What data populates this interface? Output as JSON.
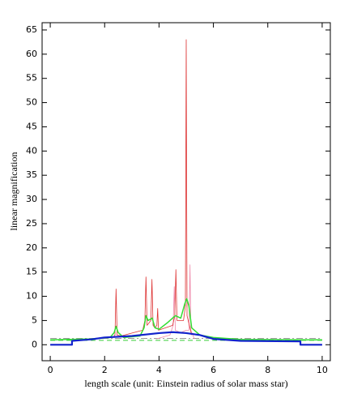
{
  "chart_data": {
    "type": "line",
    "xlabel": "length scale (unit: Einstein radius of solar mass star)",
    "ylabel": "linear magnification",
    "xlim": [
      -0.3,
      10.3
    ],
    "ylim": [
      -3.3,
      66.5
    ],
    "xticks": [
      0,
      2,
      4,
      6,
      8,
      10
    ],
    "yticks": [
      0,
      5,
      10,
      15,
      20,
      25,
      30,
      35,
      40,
      45,
      50,
      55,
      60,
      65
    ],
    "series": [
      {
        "color": "#999999",
        "linestyle": "dashdot",
        "linewidth": 1,
        "x": [
          0,
          10
        ],
        "values": [
          1.3,
          1.3
        ]
      },
      {
        "color": "#33cc33",
        "linestyle": "dashed",
        "linewidth": 1,
        "x": [
          0,
          10
        ],
        "values": [
          0.9,
          0.9
        ]
      },
      {
        "color": "#ee88aa",
        "linestyle": "solid",
        "linewidth": 0.8,
        "x": [
          3.9,
          4.4,
          4.52,
          4.56,
          4.6,
          4.8,
          5.0,
          5.1,
          5.14,
          5.17,
          5.3
        ],
        "values": [
          1.2,
          2,
          4,
          12,
          3,
          2.5,
          3,
          3,
          16.5,
          3,
          1.2
        ]
      },
      {
        "color": "#dd3333",
        "linestyle": "solid",
        "linewidth": 0.8,
        "x": [
          2.3,
          2.38,
          2.42,
          2.46,
          2.6,
          3.4,
          3.48,
          3.52,
          3.56,
          3.7,
          3.74,
          3.78,
          3.85,
          3.92,
          3.95,
          3.98,
          4.5,
          4.58,
          4.62,
          4.66,
          4.9,
          4.97,
          5.0,
          5.03,
          5.2
        ],
        "values": [
          1.5,
          2,
          11.5,
          2,
          1.8,
          3,
          5,
          14,
          4,
          5,
          13.5,
          4,
          3.5,
          4,
          7.5,
          3,
          4,
          6,
          15.5,
          5,
          5,
          8,
          63,
          6,
          2
        ]
      },
      {
        "color": "#33dd33",
        "linestyle": "solid",
        "linewidth": 1.5,
        "x": [
          0,
          1.5,
          2.2,
          2.35,
          2.42,
          2.5,
          2.7,
          3.3,
          3.45,
          3.52,
          3.6,
          3.75,
          3.85,
          4.0,
          4.3,
          4.6,
          4.8,
          4.95,
          5.02,
          5.1,
          5.2,
          5.5,
          6,
          7,
          10
        ],
        "values": [
          1,
          1.2,
          1.5,
          2.5,
          3.8,
          2.5,
          1.5,
          1.8,
          3.5,
          6,
          5,
          5.5,
          3.5,
          3.2,
          4.5,
          6,
          5.5,
          8.5,
          9.5,
          8,
          3.5,
          2,
          1.5,
          1.1,
          1
        ]
      },
      {
        "color": "#1122cc",
        "linestyle": "solid",
        "linewidth": 2.2,
        "x": [
          0,
          0.8,
          0.8,
          1.5,
          2,
          3,
          4,
          4.5,
          5,
          5.5,
          6,
          7,
          9.2,
          9.2,
          10
        ],
        "values": [
          0,
          0,
          0.8,
          1.1,
          1.5,
          1.8,
          2.4,
          2.6,
          2.4,
          2,
          1.2,
          0.8,
          0.7,
          0,
          0
        ]
      }
    ]
  }
}
